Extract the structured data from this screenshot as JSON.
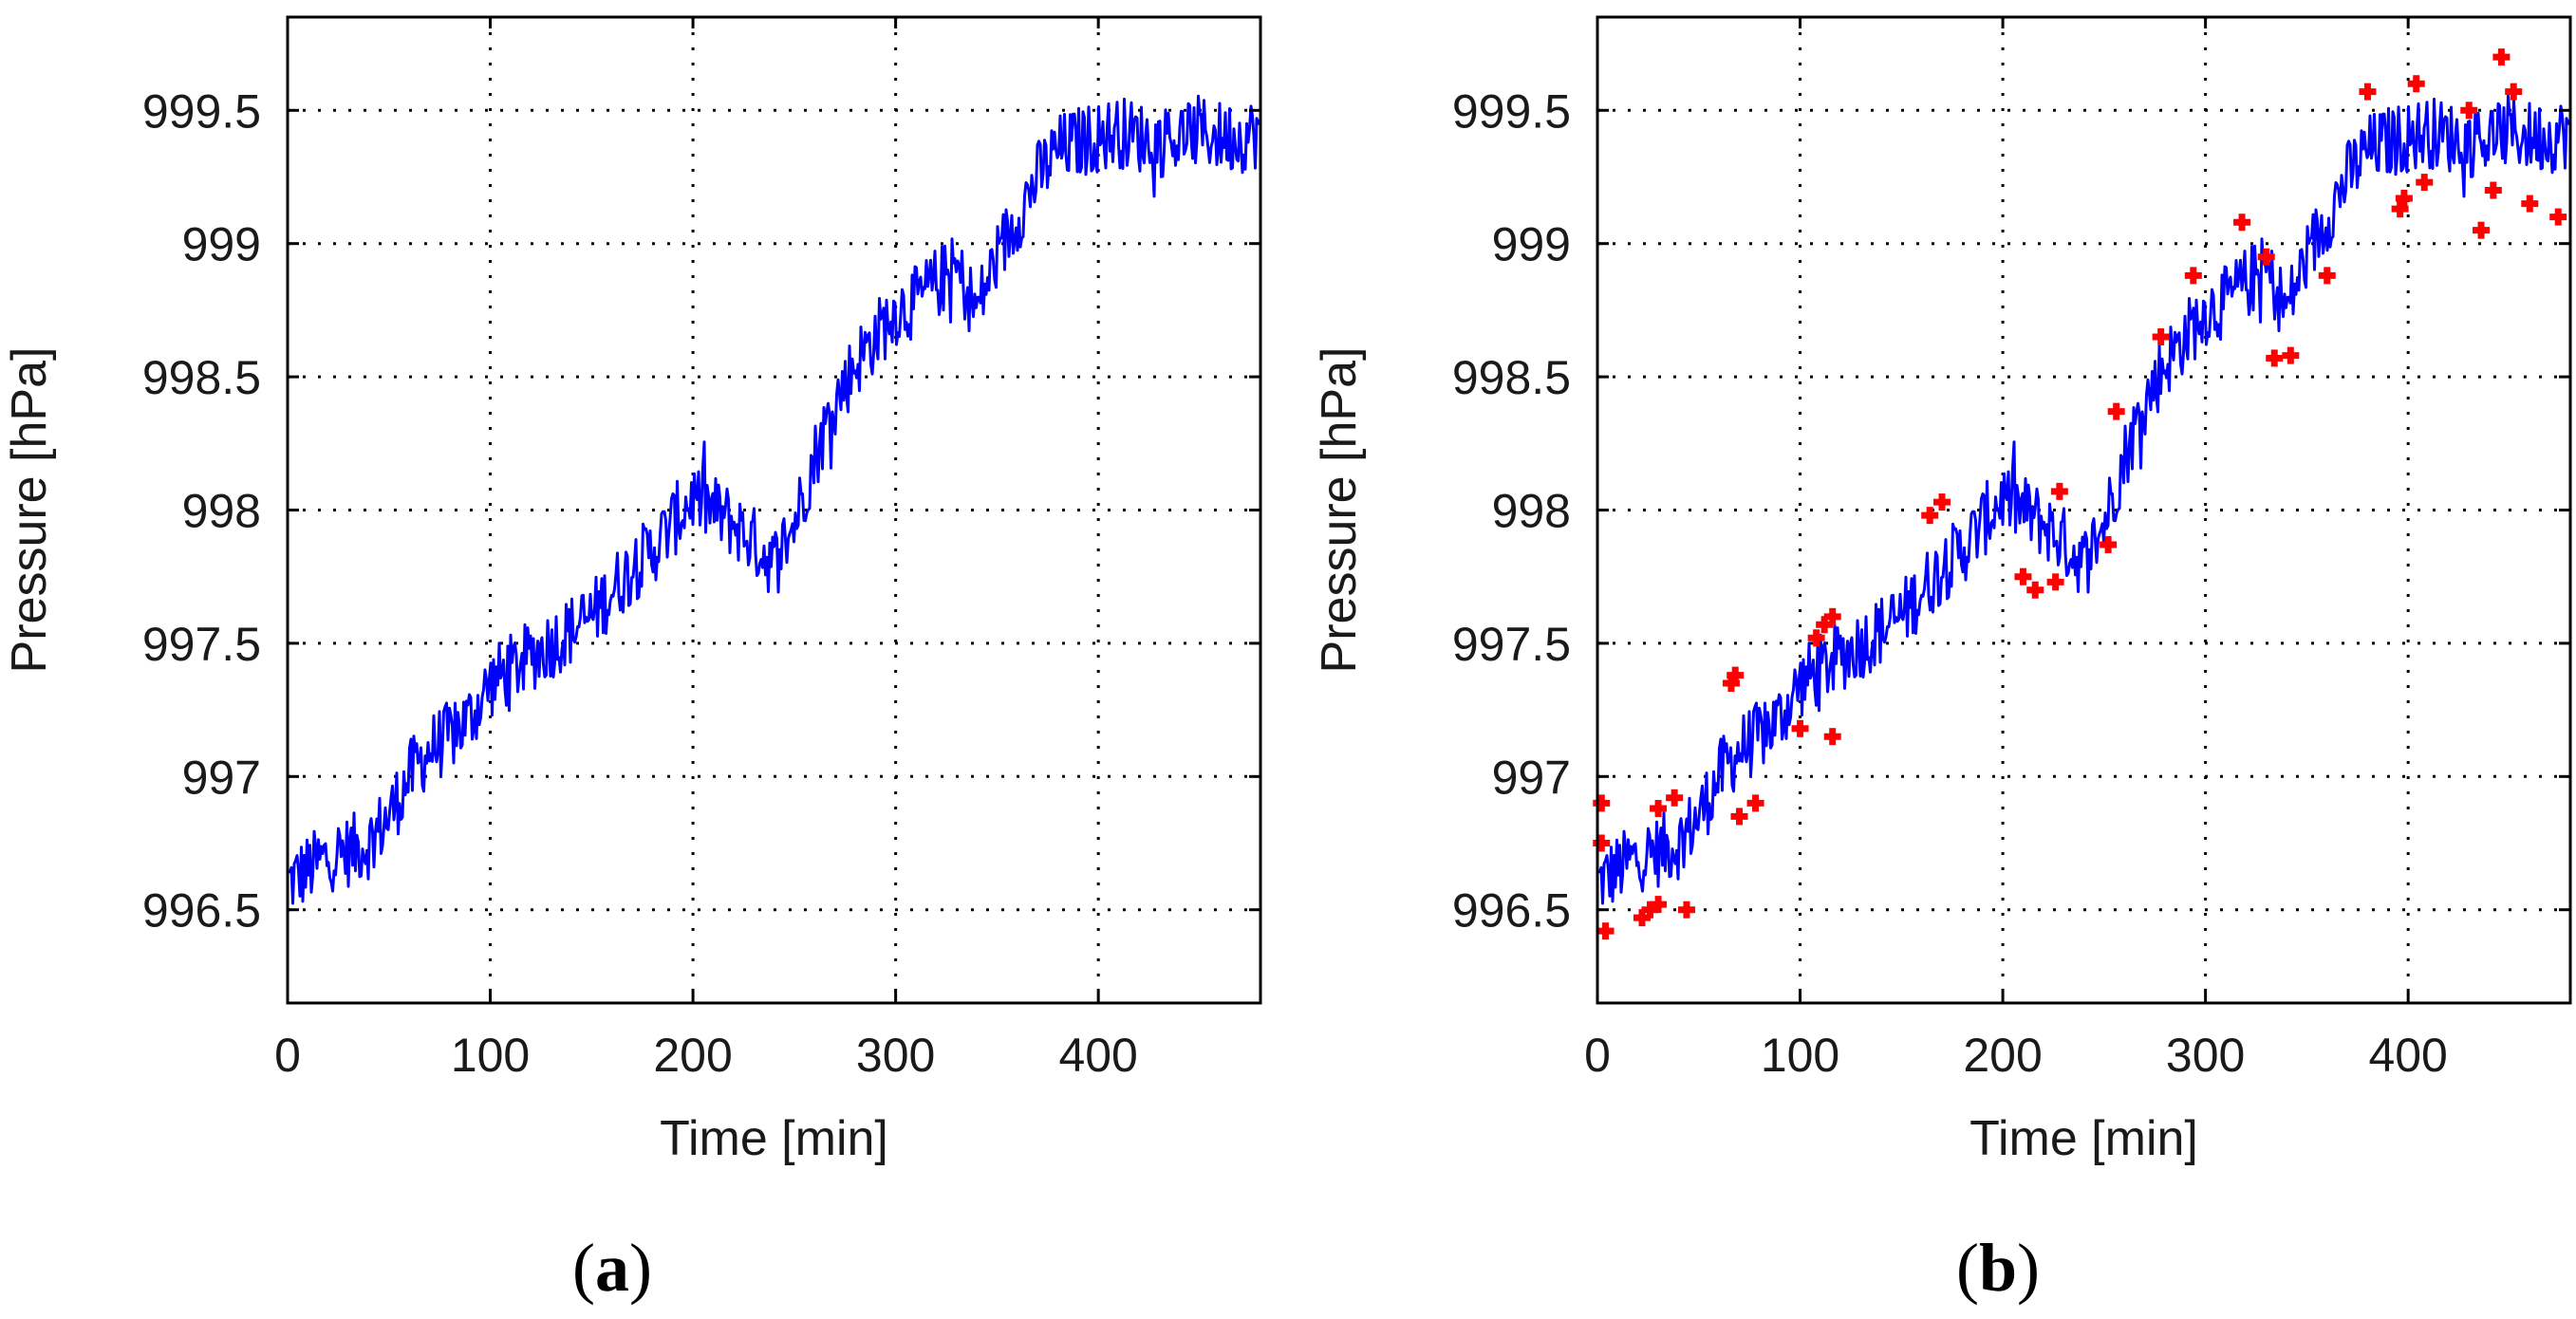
{
  "chart_data": [
    {
      "panel": "(a)",
      "panel_letter": "a",
      "type": "line",
      "title": "",
      "xlabel": "Time [min]",
      "ylabel": "Pressure [hPa]",
      "xlim": [
        0,
        480
      ],
      "ylim": [
        996.15,
        999.85
      ],
      "xticks": [
        0,
        100,
        200,
        300,
        400
      ],
      "xtick_labels": [
        "0",
        "100",
        "200",
        "300",
        "400"
      ],
      "yticks": [
        996.5,
        997,
        997.5,
        998,
        998.5,
        999,
        999.5
      ],
      "ytick_labels": [
        "996.5",
        "997",
        "997.5",
        "998",
        "998.5",
        "999",
        "999.5"
      ],
      "grid": true,
      "series": [
        {
          "name": "pressure",
          "color": "#0000ff",
          "noise_band_hpa": 0.16,
          "x": [
            0,
            10,
            20,
            30,
            40,
            50,
            60,
            70,
            80,
            90,
            100,
            110,
            120,
            130,
            140,
            150,
            160,
            170,
            180,
            190,
            200,
            210,
            220,
            230,
            240,
            250,
            260,
            270,
            280,
            290,
            300,
            310,
            320,
            330,
            340,
            350,
            360,
            370,
            380,
            390,
            400,
            410,
            420,
            430,
            440,
            450,
            460,
            470,
            480
          ],
          "values": [
            996.6,
            996.65,
            996.7,
            996.72,
            996.75,
            996.85,
            997.0,
            997.1,
            997.15,
            997.22,
            997.35,
            997.4,
            997.45,
            997.5,
            997.55,
            997.6,
            997.7,
            997.78,
            997.85,
            997.95,
            998.05,
            998.0,
            997.95,
            997.88,
            997.8,
            997.95,
            998.2,
            998.4,
            998.55,
            998.65,
            998.75,
            998.78,
            998.85,
            998.9,
            998.75,
            998.95,
            999.1,
            999.25,
            999.35,
            999.38,
            999.4,
            999.42,
            999.4,
            999.38,
            999.4,
            999.42,
            999.4,
            999.4,
            999.42
          ]
        }
      ]
    },
    {
      "panel": "(b)",
      "panel_letter": "b",
      "type": "line",
      "title": "",
      "xlabel": "Time [min]",
      "ylabel": "Pressure [hPa]",
      "xlim": [
        0,
        480
      ],
      "ylim": [
        996.15,
        999.85
      ],
      "xticks": [
        0,
        100,
        200,
        300,
        400
      ],
      "xtick_labels": [
        "0",
        "100",
        "200",
        "300",
        "400"
      ],
      "yticks": [
        996.5,
        997,
        997.5,
        998,
        998.5,
        999,
        999.5
      ],
      "ytick_labels": [
        "996.5",
        "997",
        "997.5",
        "998",
        "998.5",
        "999",
        "999.5"
      ],
      "grid": true,
      "series": [
        {
          "name": "pressure",
          "color": "#0000ff",
          "noise_band_hpa": 0.16,
          "x": [
            0,
            10,
            20,
            30,
            40,
            50,
            60,
            70,
            80,
            90,
            100,
            110,
            120,
            130,
            140,
            150,
            160,
            170,
            180,
            190,
            200,
            210,
            220,
            230,
            240,
            250,
            260,
            270,
            280,
            290,
            300,
            310,
            320,
            330,
            340,
            350,
            360,
            370,
            380,
            390,
            400,
            410,
            420,
            430,
            440,
            450,
            460,
            470,
            480
          ],
          "values": [
            996.6,
            996.65,
            996.7,
            996.72,
            996.75,
            996.85,
            997.0,
            997.1,
            997.15,
            997.22,
            997.35,
            997.4,
            997.45,
            997.5,
            997.55,
            997.6,
            997.7,
            997.78,
            997.85,
            997.95,
            998.05,
            998.0,
            997.95,
            997.88,
            997.8,
            997.95,
            998.2,
            998.4,
            998.55,
            998.65,
            998.75,
            998.78,
            998.85,
            998.9,
            998.75,
            998.95,
            999.1,
            999.25,
            999.35,
            999.38,
            999.4,
            999.42,
            999.4,
            999.38,
            999.4,
            999.42,
            999.4,
            999.4,
            999.42
          ]
        },
        {
          "name": "outliers",
          "type": "scatter",
          "marker": "+",
          "color": "#ff0000",
          "points": [
            [
              2,
              996.9
            ],
            [
              2,
              996.75
            ],
            [
              4,
              996.42
            ],
            [
              22,
              996.47
            ],
            [
              26,
              996.5
            ],
            [
              30,
              996.52
            ],
            [
              30,
              996.88
            ],
            [
              38,
              996.92
            ],
            [
              44,
              996.5
            ],
            [
              66,
              997.35
            ],
            [
              68,
              997.38
            ],
            [
              70,
              996.85
            ],
            [
              78,
              996.9
            ],
            [
              100,
              997.18
            ],
            [
              108,
              997.52
            ],
            [
              112,
              997.57
            ],
            [
              116,
              997.6
            ],
            [
              116,
              997.15
            ],
            [
              164,
              997.98
            ],
            [
              170,
              998.03
            ],
            [
              210,
              997.75
            ],
            [
              216,
              997.7
            ],
            [
              226,
              997.73
            ],
            [
              228,
              998.07
            ],
            [
              252,
              997.87
            ],
            [
              256,
              998.37
            ],
            [
              278,
              998.65
            ],
            [
              294,
              998.88
            ],
            [
              318,
              999.08
            ],
            [
              330,
              998.95
            ],
            [
              334,
              998.57
            ],
            [
              342,
              998.58
            ],
            [
              360,
              998.88
            ],
            [
              380,
              999.57
            ],
            [
              396,
              999.13
            ],
            [
              398,
              999.17
            ],
            [
              404,
              999.6
            ],
            [
              408,
              999.23
            ],
            [
              430,
              999.5
            ],
            [
              436,
              999.05
            ],
            [
              442,
              999.2
            ],
            [
              446,
              999.7
            ],
            [
              452,
              999.57
            ],
            [
              460,
              999.15
            ],
            [
              474,
              999.1
            ]
          ]
        }
      ]
    }
  ]
}
